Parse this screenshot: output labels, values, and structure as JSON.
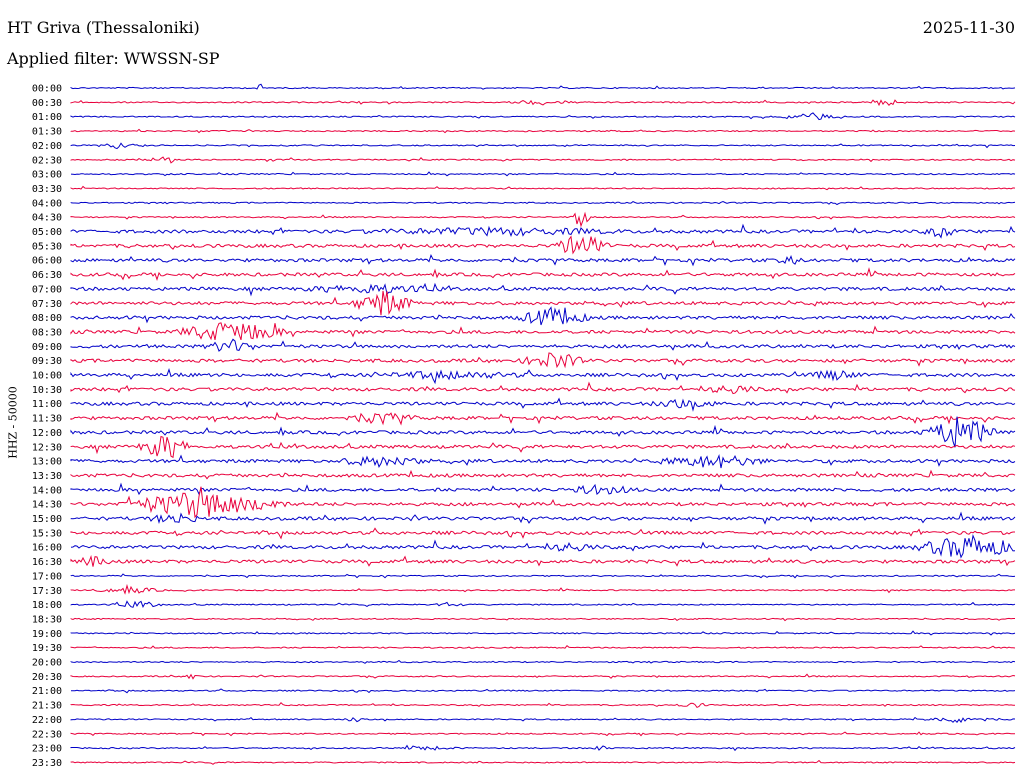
{
  "header": {
    "station": "HT Griva (Thessaloniki)",
    "date": "2025-11-30",
    "filter": "Applied filter: WWSSN-SP"
  },
  "chart_data": {
    "type": "line",
    "title": "HT Griva (Thessaloniki)",
    "ylabel": "HHZ - 50000",
    "time_labels": [
      "00:00",
      "00:30",
      "01:00",
      "01:30",
      "02:00",
      "02:30",
      "03:00",
      "03:30",
      "04:00",
      "04:30",
      "05:00",
      "05:30",
      "06:00",
      "06:30",
      "07:00",
      "07:30",
      "08:00",
      "08:30",
      "09:00",
      "09:30",
      "10:00",
      "10:30",
      "11:00",
      "11:30",
      "12:00",
      "12:30",
      "13:00",
      "13:30",
      "14:00",
      "14:30",
      "15:00",
      "15:30",
      "16:00",
      "16:30",
      "17:00",
      "17:30",
      "18:00",
      "18:30",
      "19:00",
      "19:30",
      "20:00",
      "20:30",
      "21:00",
      "21:30",
      "22:00",
      "22:30",
      "23:00",
      "23:30"
    ],
    "series_colors": [
      "#0000c8",
      "#e8003c"
    ],
    "x_minutes_range": [
      0,
      30
    ],
    "grid": false,
    "legend": "none"
  }
}
